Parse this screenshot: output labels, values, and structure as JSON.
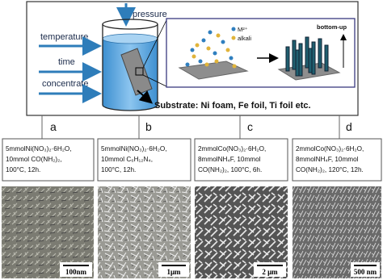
{
  "diagram": {
    "top": {
      "pressure": "pressure",
      "inputs": [
        "temperature",
        "time",
        "concentrate"
      ],
      "substrate": "Substrate: Ni foam, Fe foil, Ti foil etc.",
      "legend": [
        "M²⁺",
        "alkali"
      ],
      "direction": "bottom-up"
    },
    "panels": [
      {
        "label": "a",
        "recipe": [
          "5mmolNi(NO₃)₂·6H₂O,",
          "10mmol CO(NH₂)₂,",
          "100°C, 12h."
        ],
        "scale": "100nm"
      },
      {
        "label": "b",
        "recipe": [
          "5mmolNi(NO₃)₂·6H₂O,",
          "10mmol C₆H₁₂N₄,",
          "100°C, 12h."
        ],
        "scale": "1μm"
      },
      {
        "label": "c",
        "recipe": [
          "2mmolCo(NO₃)₂·6H₂O,",
          "8mmolNH₄F, 10mmol",
          "CO(NH₂)₂, 100°C, 6h."
        ],
        "scale": "2 μm"
      },
      {
        "label": "d",
        "recipe": [
          "2mmolCo(NO₃)₂·6H₂O,",
          "8mmolNH₄F, 10mmol",
          "CO(NH₂)₂, 120°C, 12h."
        ],
        "scale": "500 nm"
      }
    ]
  }
}
